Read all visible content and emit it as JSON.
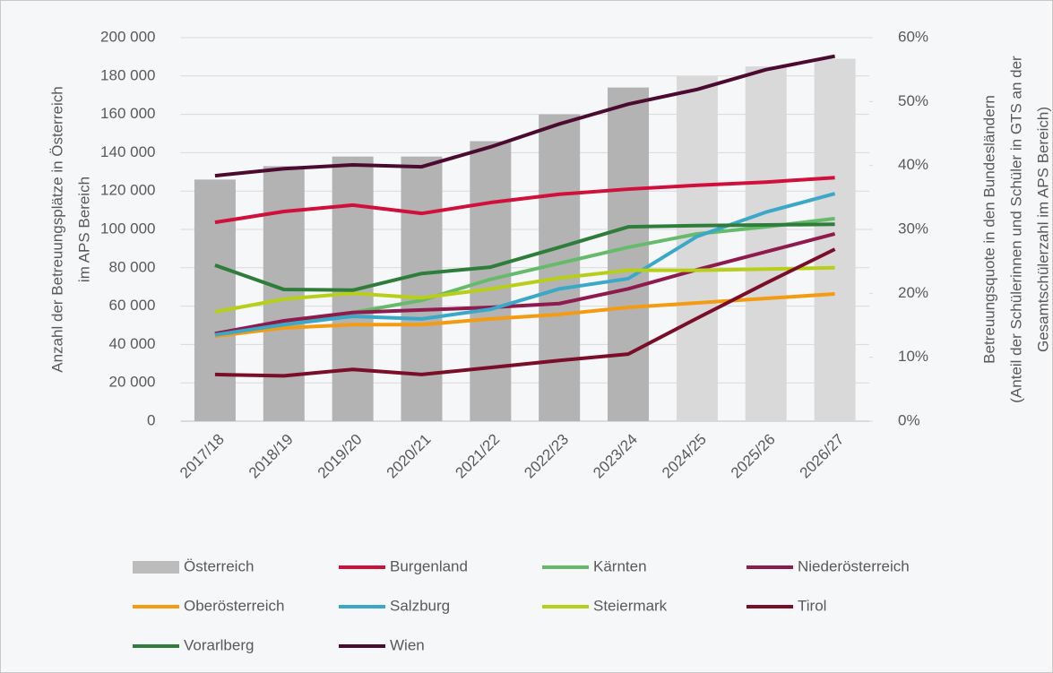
{
  "chart_data": {
    "type": "combo",
    "categories": [
      "2017/18",
      "2018/19",
      "2019/20",
      "2020/21",
      "2021/22",
      "2022/23",
      "2023/24",
      "2024/25",
      "2025/26",
      "2026/27"
    ],
    "y_label_lines": [
      "Anzahl der Betreuungsplätze in Österreich",
      "im APS Bereich"
    ],
    "y2_label_lines": [
      "Betreuungsquote in den  Bundesländern",
      "(Anteil der Schülerinnen und Schüler in GTS an der",
      "Gesamtschülerzahl im APS Bereich)"
    ],
    "ylim": [
      0,
      200000
    ],
    "yticks": [
      0,
      {
        "value": 20000,
        "label": "20 000"
      },
      {
        "value": 40000,
        "label": "40 000"
      },
      {
        "value": 60000,
        "label": "60 000"
      },
      {
        "value": 80000,
        "label": "80 000"
      },
      {
        "value": 100000,
        "label": "100 000"
      },
      {
        "value": 120000,
        "label": "120 000"
      },
      {
        "value": 140000,
        "label": "140 000"
      },
      {
        "value": 160000,
        "label": "160 000"
      },
      {
        "value": 180000,
        "label": "180 000"
      },
      {
        "value": 200000,
        "label": "200 000"
      }
    ],
    "y2lim": [
      0,
      60
    ],
    "y2ticks": [
      {
        "value": 0,
        "label": "0%"
      },
      {
        "value": 10,
        "label": "10%"
      },
      {
        "value": 20,
        "label": "20%"
      },
      {
        "value": 30,
        "label": "30%"
      },
      {
        "value": 40,
        "label": "40%"
      },
      {
        "value": 50,
        "label": "50%"
      },
      {
        "value": 60,
        "label": "60%"
      }
    ],
    "grid": true,
    "legend": "bottom",
    "series": [
      {
        "name": "Österreich",
        "type": "bar",
        "color": "#bcbcbc",
        "colors": [
          "#b3b3b3",
          "#b3b3b3",
          "#b3b3b3",
          "#b3b3b3",
          "#b3b3b3",
          "#b3b3b3",
          "#b3b3b3",
          "#d9d9d9",
          "#d9d9d9",
          "#d9d9d9"
        ],
        "values": [
          126000,
          133000,
          138000,
          138000,
          146000,
          160000,
          174000,
          180000,
          185000,
          189000
        ]
      },
      {
        "name": "Burgenland",
        "type": "line",
        "axis": "y2",
        "color": "#d0103a",
        "values": [
          31.1,
          32.8,
          33.8,
          32.5,
          34.2,
          35.5,
          36.3,
          36.9,
          37.4,
          38.1
        ]
      },
      {
        "name": "Kärnten",
        "type": "line",
        "axis": "y2",
        "color": "#66bb6a",
        "values": [
          13.6,
          15.3,
          17.0,
          18.9,
          22.2,
          24.7,
          27.2,
          29.3,
          30.4,
          31.7
        ]
      },
      {
        "name": "Niederösterreich",
        "type": "line",
        "axis": "y2",
        "color": "#8e1a4e",
        "values": [
          13.7,
          15.7,
          17.0,
          17.4,
          17.8,
          18.4,
          20.7,
          23.7,
          26.5,
          29.3
        ]
      },
      {
        "name": "Oberösterreich",
        "type": "line",
        "axis": "y2",
        "color": "#f39c12",
        "values": [
          13.3,
          14.6,
          15.1,
          15.1,
          16.0,
          16.7,
          17.8,
          18.5,
          19.2,
          19.9
        ]
      },
      {
        "name": "Salzburg",
        "type": "line",
        "axis": "y2",
        "color": "#3ba8c8",
        "values": [
          13.5,
          15.1,
          16.4,
          16.0,
          17.5,
          20.7,
          22.3,
          28.9,
          32.7,
          35.6
        ]
      },
      {
        "name": "Steiermark",
        "type": "line",
        "axis": "y2",
        "color": "#b8cf1a",
        "values": [
          17.1,
          19.1,
          20.0,
          19.3,
          20.7,
          22.4,
          23.6,
          23.6,
          23.8,
          24.0
        ]
      },
      {
        "name": "Tirol",
        "type": "line",
        "axis": "y2",
        "color": "#7a0e28",
        "values": [
          7.3,
          7.1,
          8.1,
          7.3,
          8.4,
          9.5,
          10.5,
          16.1,
          21.6,
          26.9
        ]
      },
      {
        "name": "Vorarlberg",
        "type": "line",
        "axis": "y2",
        "color": "#2f7d3a",
        "values": [
          24.4,
          20.6,
          20.5,
          23.1,
          24.1,
          27.2,
          30.4,
          30.6,
          30.7,
          30.8
        ]
      },
      {
        "name": "Wien",
        "type": "line",
        "axis": "y2",
        "color": "#4b0a30",
        "values": [
          38.4,
          39.5,
          40.1,
          39.8,
          42.9,
          46.5,
          49.6,
          51.9,
          55.0,
          57.1
        ]
      }
    ]
  }
}
